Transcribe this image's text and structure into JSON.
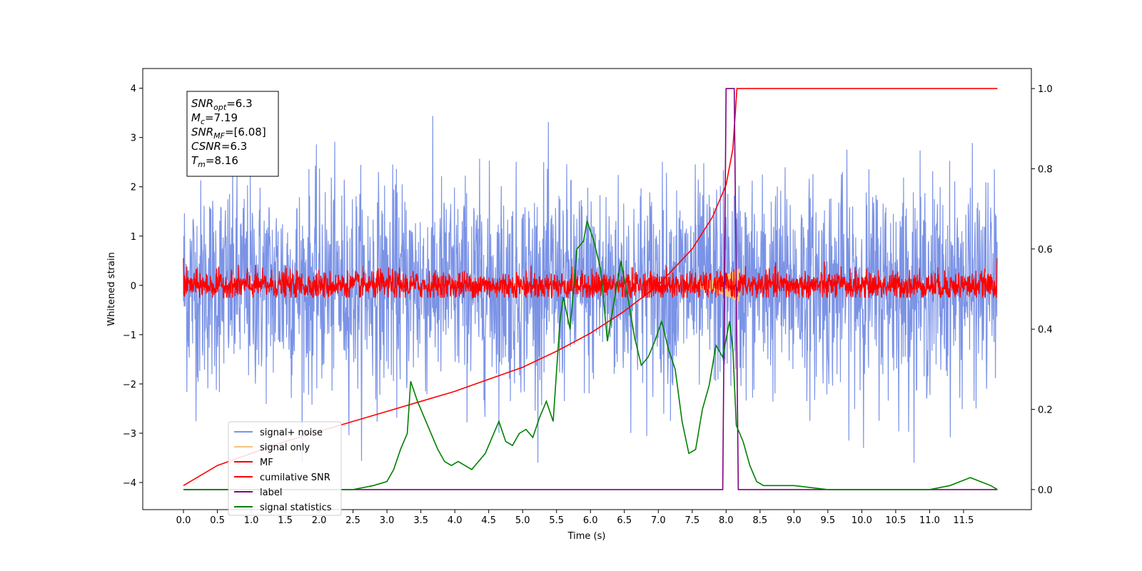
{
  "chart_data": {
    "type": "line",
    "title": "",
    "xlabel": "Time (s)",
    "ylabel": "Whitened strain",
    "xlim": [
      -0.6,
      12.5
    ],
    "ylim": [
      -4.55,
      4.4
    ],
    "ylim_right": [
      -0.05,
      1.05
    ],
    "grid": false,
    "legend_position": "lower-left",
    "x_ticks": [
      "0.0",
      "0.5",
      "1.0",
      "1.5",
      "2.0",
      "2.5",
      "3.0",
      "3.5",
      "4.0",
      "4.5",
      "5.0",
      "5.5",
      "6.0",
      "6.5",
      "7.0",
      "7.5",
      "8.0",
      "8.5",
      "9.0",
      "9.5",
      "10.0",
      "10.5",
      "11.0",
      "11.5"
    ],
    "y_ticks": [
      "4",
      "3",
      "2",
      "1",
      "0",
      "−1",
      "−2",
      "−3",
      "−4"
    ],
    "y_right_ticks": [
      "1.0",
      "0.8",
      "0.6",
      "0.4",
      "0.2",
      "0.0"
    ],
    "stats_box": [
      {
        "main": "SNR",
        "sub": "opt",
        "value": "=6.3"
      },
      {
        "main": "M",
        "sub": "c",
        "value": "=7.19"
      },
      {
        "main": "SNR",
        "sub": "MF",
        "value": "=[6.08]"
      },
      {
        "main": "CSNR",
        "sub": "",
        "value": "=6.3"
      },
      {
        "main": "T",
        "sub": "m",
        "value": "=8.16"
      }
    ],
    "series": [
      {
        "name": "signal+ noise",
        "color": "#7b93e6",
        "axis": "left",
        "description_range": [
          -3.6,
          4.0
        ]
      },
      {
        "name": "signal only",
        "color": "#f5c27a",
        "axis": "left"
      },
      {
        "name": "MF",
        "color": "#ff0000",
        "axis": "left"
      },
      {
        "name": "cumilative SNR",
        "color": "#ff0000",
        "axis": "right",
        "x": [
          0.0,
          0.5,
          1.0,
          1.5,
          2.0,
          2.5,
          3.0,
          3.5,
          4.0,
          4.5,
          5.0,
          5.5,
          6.0,
          6.5,
          7.0,
          7.5,
          7.8,
          8.0,
          8.1,
          8.16,
          12.0
        ],
        "values": [
          0.01,
          0.06,
          0.09,
          0.12,
          0.145,
          0.17,
          0.195,
          0.22,
          0.245,
          0.275,
          0.305,
          0.345,
          0.39,
          0.445,
          0.51,
          0.6,
          0.68,
          0.76,
          0.85,
          1.0,
          1.0
        ]
      },
      {
        "name": "label",
        "color": "#800080",
        "axis": "right",
        "x": [
          0.0,
          7.95,
          8.0,
          8.12,
          8.18,
          12.0
        ],
        "values": [
          0.0,
          0.0,
          1.0,
          1.0,
          0.0,
          0.0
        ]
      },
      {
        "name": "signal statistics",
        "color": "#008000",
        "axis": "right",
        "x": [
          0.0,
          0.5,
          1.0,
          1.5,
          2.0,
          2.5,
          2.8,
          3.0,
          3.1,
          3.2,
          3.3,
          3.35,
          3.45,
          3.55,
          3.65,
          3.75,
          3.85,
          3.95,
          4.05,
          4.15,
          4.25,
          4.35,
          4.45,
          4.55,
          4.65,
          4.75,
          4.85,
          4.95,
          5.05,
          5.15,
          5.25,
          5.35,
          5.45,
          5.55,
          5.6,
          5.7,
          5.8,
          5.9,
          5.95,
          6.05,
          6.15,
          6.25,
          6.35,
          6.45,
          6.55,
          6.65,
          6.75,
          6.85,
          6.95,
          7.05,
          7.15,
          7.25,
          7.35,
          7.45,
          7.55,
          7.65,
          7.75,
          7.85,
          7.95,
          8.05,
          8.1,
          8.15,
          8.25,
          8.35,
          8.45,
          8.55,
          8.65,
          8.8,
          9.0,
          9.5,
          10.0,
          10.5,
          11.0,
          11.3,
          11.45,
          11.6,
          11.75,
          11.9,
          12.0
        ],
        "values": [
          0.0,
          0.0,
          0.0,
          0.0,
          0.0,
          0.0,
          0.01,
          0.02,
          0.05,
          0.1,
          0.14,
          0.27,
          0.22,
          0.18,
          0.14,
          0.1,
          0.07,
          0.06,
          0.07,
          0.06,
          0.05,
          0.07,
          0.09,
          0.13,
          0.17,
          0.12,
          0.11,
          0.14,
          0.15,
          0.13,
          0.18,
          0.22,
          0.17,
          0.42,
          0.48,
          0.4,
          0.6,
          0.62,
          0.67,
          0.62,
          0.55,
          0.37,
          0.47,
          0.57,
          0.48,
          0.38,
          0.31,
          0.33,
          0.37,
          0.42,
          0.35,
          0.3,
          0.17,
          0.09,
          0.1,
          0.2,
          0.26,
          0.36,
          0.33,
          0.42,
          0.35,
          0.16,
          0.12,
          0.06,
          0.02,
          0.01,
          0.01,
          0.01,
          0.01,
          0.0,
          0.0,
          0.0,
          0.0,
          0.01,
          0.02,
          0.03,
          0.02,
          0.01,
          0.0
        ]
      }
    ]
  }
}
